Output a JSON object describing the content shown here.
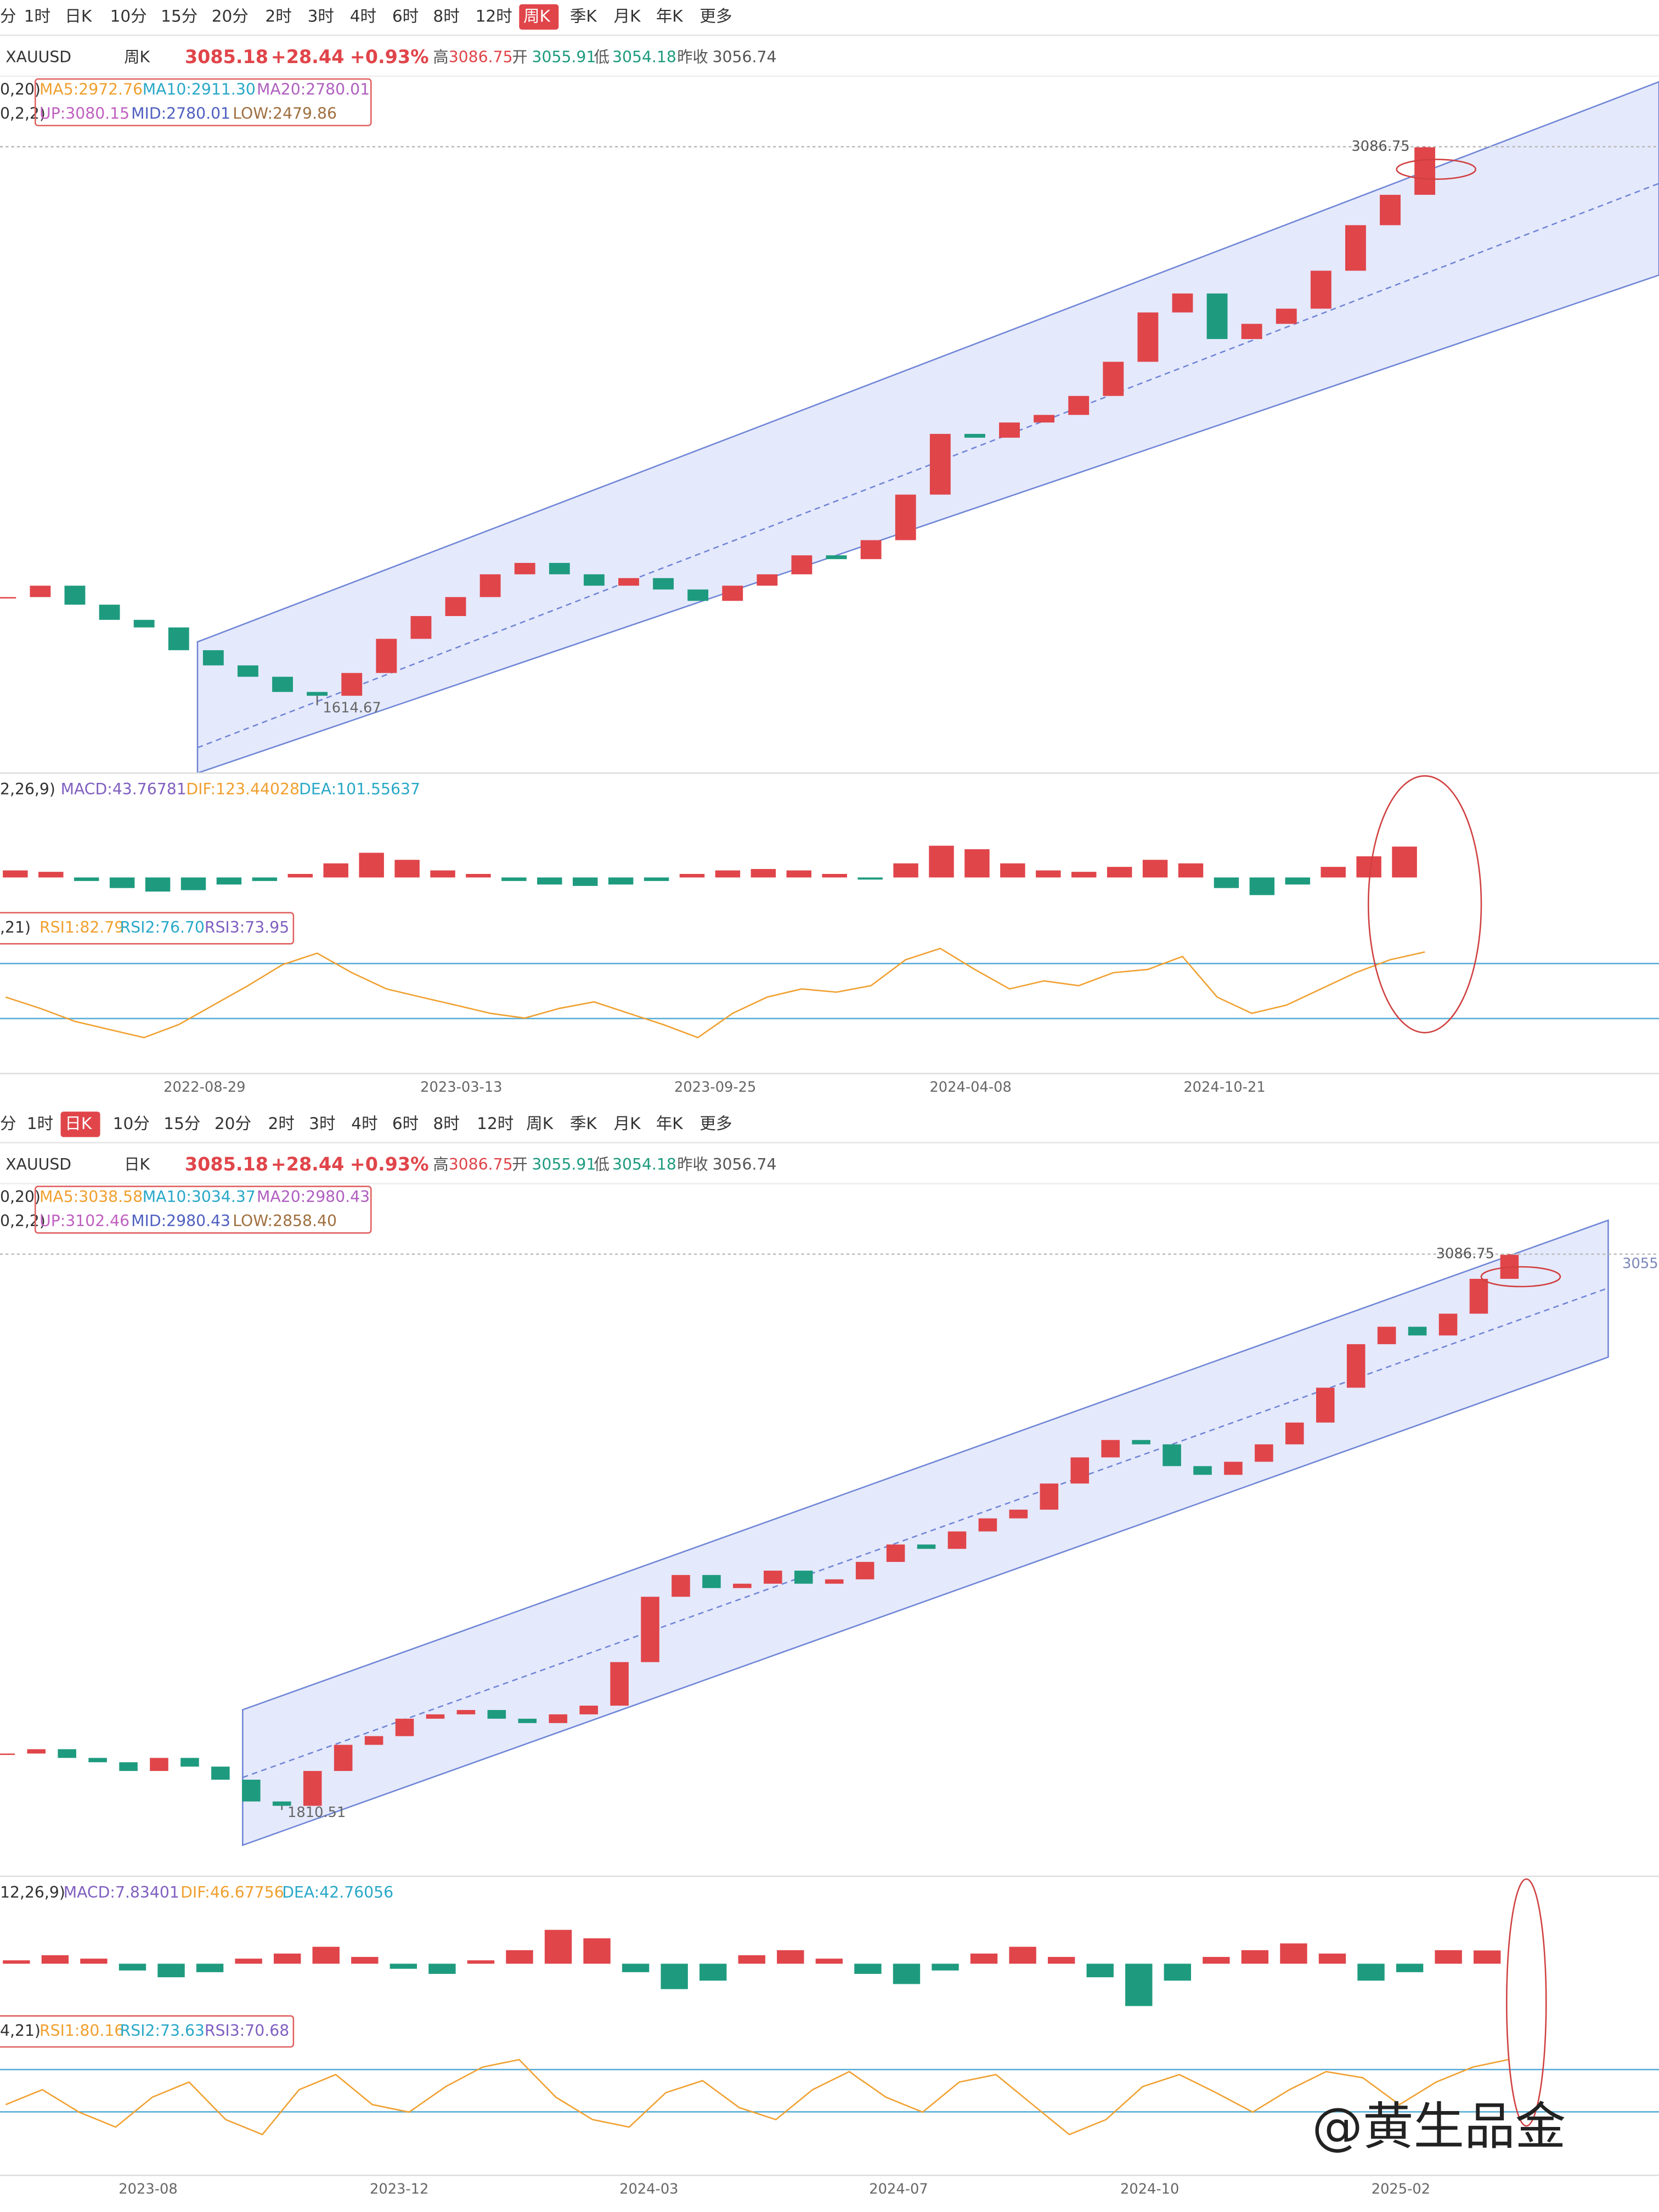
{
  "panels": [
    {
      "toolbar": [
        "分",
        "1时",
        "日K",
        "10分",
        "15分",
        "20分",
        "2时",
        "3时",
        "4时",
        "6时",
        "8时",
        "12时",
        "周K",
        "季K",
        "月K",
        "年K",
        "更多"
      ],
      "active_tab": 12,
      "info": [
        "XAUUSD",
        "周K",
        "3085.18",
        "+28.44",
        "+0.93%",
        "高",
        "3086.75",
        "开",
        "3055.91",
        "低",
        "3054.18",
        "昨收",
        "3056.74"
      ],
      "ma": {
        "params": "0,20)",
        "items": [
          "MA5:2972.76",
          "MA10:2911.30",
          "MA20:2780.01"
        ]
      },
      "boll": {
        "params": "0,2,2)",
        "items": [
          "UP:3080.15",
          "MID:2780.01",
          "LOW:2479.86"
        ]
      },
      "macd": {
        "params": "2,26,9)",
        "items": [
          "MACD:43.76781",
          "DIF:123.44028",
          "DEA:101.55637"
        ]
      },
      "rsi_label": {
        "params": ",21)",
        "items": [
          "RSI1:82.79",
          "RSI2:76.70",
          "RSI3:73.95"
        ]
      },
      "dates": [
        "2022-08-29",
        "2023-03-13",
        "2023-09-25",
        "2024-04-08",
        "2024-10-21"
      ],
      "high_mark": 3086.75,
      "low_mark": 1614.67,
      "closes": [
        1900,
        1930,
        1880,
        1840,
        1820,
        1760,
        1720,
        1690,
        1650,
        1640,
        1700,
        1790,
        1850,
        1900,
        1960,
        1990,
        1960,
        1930,
        1950,
        1920,
        1890,
        1930,
        1960,
        2010,
        2000,
        2050,
        2170,
        2330,
        2320,
        2360,
        2380,
        2430,
        2520,
        2650,
        2700,
        2580,
        2620,
        2660,
        2760,
        2880,
        2960,
        3085.18
      ],
      "macd_hist": [
        10,
        8,
        -5,
        -15,
        -20,
        -18,
        -10,
        -5,
        5,
        20,
        35,
        25,
        10,
        5,
        -5,
        -10,
        -12,
        -10,
        -5,
        5,
        10,
        12,
        10,
        5,
        -3,
        20,
        45,
        40,
        20,
        10,
        8,
        15,
        25,
        20,
        -15,
        -25,
        -10,
        15,
        30,
        43.77
      ],
      "rsi": [
        55,
        48,
        40,
        35,
        30,
        38,
        50,
        62,
        75,
        82,
        70,
        60,
        55,
        50,
        45,
        42,
        48,
        52,
        45,
        38,
        30,
        45,
        55,
        60,
        58,
        62,
        78,
        85,
        72,
        60,
        65,
        62,
        70,
        72,
        80,
        55,
        45,
        50,
        60,
        70,
        78,
        82.79
      ]
    },
    {
      "toolbar": [
        "分",
        "1时",
        "日K",
        "10分",
        "15分",
        "20分",
        "2时",
        "3时",
        "4时",
        "6时",
        "8时",
        "12时",
        "周K",
        "季K",
        "月K",
        "年K",
        "更多"
      ],
      "active_tab": 2,
      "info": [
        "XAUUSD",
        "日K",
        "3085.18",
        "+28.44",
        "+0.93%",
        "高",
        "3086.75",
        "开",
        "3055.91",
        "低",
        "3054.18",
        "昨收",
        "3056.74"
      ],
      "ma": {
        "params": "0,20)",
        "items": [
          "MA5:3038.58",
          "MA10:3034.37",
          "MA20:2980.43"
        ]
      },
      "boll": {
        "params": "0,2,2)",
        "items": [
          "UP:3102.46",
          "MID:2980.43",
          "LOW:2858.40"
        ]
      },
      "macd": {
        "params": "12,26,9)",
        "items": [
          "MACD:7.83401",
          "DIF:46.67756",
          "DEA:42.76056"
        ]
      },
      "rsi_label": {
        "params": "4,21)",
        "items": [
          "RSI1:80.16",
          "RSI2:73.63",
          "RSI3:70.68"
        ]
      },
      "dates": [
        "2023-08",
        "2023-12",
        "2024-03",
        "2024-07",
        "2024-10",
        "2025-02"
      ],
      "high_mark": 3086.75,
      "low_mark": 1810.51,
      "closes": [
        1940,
        1950,
        1930,
        1920,
        1900,
        1930,
        1910,
        1880,
        1830,
        1820,
        1900,
        1960,
        1980,
        2020,
        2030,
        2040,
        2020,
        2010,
        2030,
        2050,
        2150,
        2300,
        2350,
        2320,
        2330,
        2360,
        2330,
        2340,
        2380,
        2420,
        2410,
        2450,
        2480,
        2500,
        2560,
        2620,
        2660,
        2650,
        2600,
        2580,
        2610,
        2650,
        2700,
        2780,
        2880,
        2920,
        2900,
        2950,
        3030,
        3085.18
      ],
      "macd_hist": [
        2,
        5,
        3,
        -4,
        -8,
        -5,
        3,
        6,
        10,
        4,
        -3,
        -6,
        2,
        8,
        20,
        15,
        -5,
        -15,
        -10,
        5,
        8,
        3,
        -6,
        -12,
        -4,
        6,
        10,
        4,
        -8,
        -25,
        -10,
        4,
        8,
        12,
        6,
        -10,
        -5,
        8,
        7.83
      ],
      "rsi": [
        50,
        60,
        45,
        35,
        55,
        65,
        40,
        30,
        60,
        70,
        50,
        45,
        62,
        75,
        80,
        55,
        40,
        35,
        58,
        66,
        48,
        40,
        60,
        72,
        55,
        45,
        65,
        70,
        50,
        30,
        40,
        62,
        70,
        58,
        45,
        60,
        72,
        68,
        50,
        65,
        75,
        80.16
      ]
    }
  ],
  "price_tag": "3055",
  "watermark": "@黄生品金"
}
